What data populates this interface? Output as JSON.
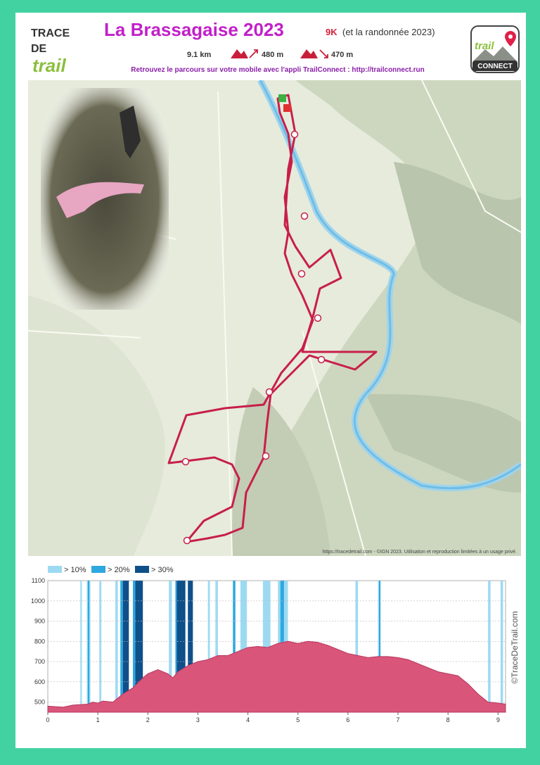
{
  "header": {
    "logo_lines": [
      "TRACE",
      "DE",
      "trail"
    ],
    "title": "La Brassagaise 2023",
    "distance_tag": "9K",
    "subtitle": "(et la randonnée 2023)",
    "stats": [
      "9.1 km",
      "480 m",
      "470 m"
    ],
    "app_line": "Retrouvez le parcours sur votre mobile avec l'appli TrailConnect : http://trailconnect.run",
    "app_logo": [
      "trail",
      "CONNECT"
    ]
  },
  "map": {
    "attribution": "https://tracedetrail.com - ©IGN 2023. Utilisation et reproduction limitées à un usage privé."
  },
  "watermark": "©TraceDeTrail.com",
  "chart_data": {
    "type": "area",
    "color": "#d9557a",
    "x": [
      0,
      0.3,
      0.5,
      0.8,
      0.9,
      1.0,
      1.1,
      1.3,
      1.5,
      1.7,
      1.9,
      2.0,
      2.2,
      2.4,
      2.5,
      2.6,
      2.8,
      3.0,
      3.2,
      3.4,
      3.6,
      3.8,
      4.0,
      4.2,
      4.4,
      4.6,
      4.8,
      5.0,
      5.2,
      5.4,
      5.6,
      5.8,
      6.0,
      6.2,
      6.4,
      6.6,
      6.8,
      7.0,
      7.2,
      7.4,
      7.6,
      7.8,
      8.0,
      8.2,
      8.4,
      8.6,
      8.8,
      9.0,
      9.15
    ],
    "values": [
      480,
      475,
      485,
      490,
      500,
      495,
      505,
      500,
      540,
      570,
      620,
      640,
      660,
      640,
      620,
      650,
      680,
      700,
      710,
      730,
      730,
      750,
      770,
      775,
      770,
      790,
      800,
      790,
      800,
      795,
      780,
      760,
      740,
      730,
      720,
      725,
      725,
      720,
      710,
      690,
      670,
      650,
      640,
      630,
      590,
      540,
      500,
      495,
      490
    ],
    "xlim": [
      0,
      9.15
    ],
    "ylim": [
      450,
      1100
    ],
    "xticks": [
      0,
      1,
      2,
      3,
      4,
      5,
      6,
      7,
      8,
      9
    ],
    "yticks": [
      500,
      600,
      700,
      800,
      900,
      1000,
      1100
    ],
    "slope_classes": [
      {
        "name": "> 10%",
        "color": "#9ddaf2",
        "ranges": [
          [
            0.65,
            0.68
          ],
          [
            0.78,
            0.85
          ],
          [
            1.03,
            1.07
          ],
          [
            1.35,
            1.4
          ],
          [
            2.42,
            2.48
          ],
          [
            3.2,
            3.24
          ],
          [
            3.35,
            3.4
          ],
          [
            3.85,
            3.98
          ],
          [
            4.3,
            4.45
          ],
          [
            4.6,
            4.8
          ],
          [
            6.15,
            6.2
          ],
          [
            6.6,
            6.65
          ],
          [
            8.8,
            8.85
          ],
          [
            9.05,
            9.1
          ]
        ]
      },
      {
        "name": "> 20%",
        "color": "#2fa8e0",
        "ranges": [
          [
            0.8,
            0.83
          ],
          [
            1.45,
            1.5
          ],
          [
            1.7,
            1.75
          ],
          [
            2.55,
            2.6
          ],
          [
            3.7,
            3.75
          ],
          [
            4.65,
            4.72
          ],
          [
            6.62,
            6.65
          ]
        ]
      },
      {
        "name": "> 30%",
        "color": "#0f4f8a",
        "ranges": [
          [
            1.5,
            1.62
          ],
          [
            1.75,
            1.9
          ],
          [
            2.58,
            2.75
          ],
          [
            2.8,
            2.9
          ]
        ]
      }
    ]
  }
}
